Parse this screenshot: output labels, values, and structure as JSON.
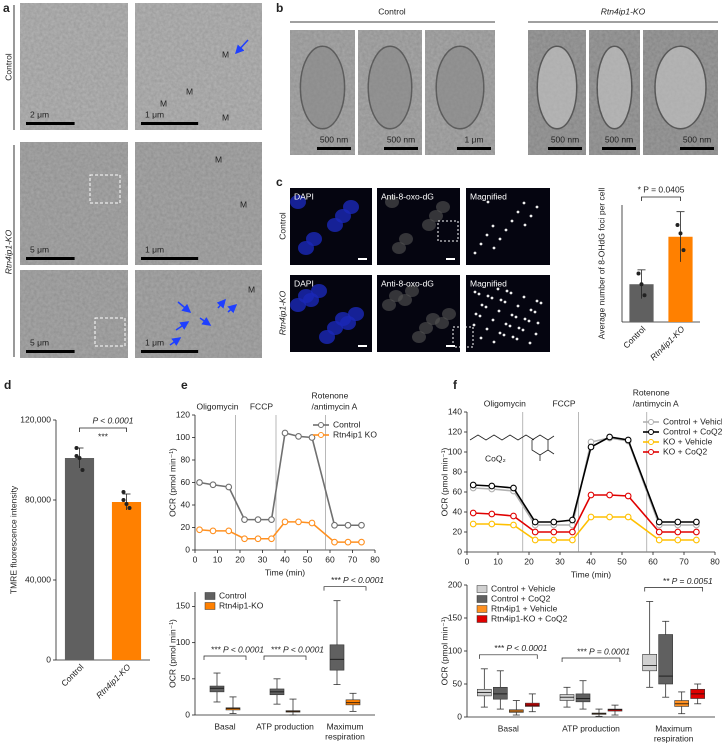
{
  "panel_a": {
    "label": "a",
    "rows": [
      "Control",
      "Rtn4ip1-KO"
    ],
    "scale_bars": [
      "2 μm",
      "1 μm",
      "5 μm",
      "1 μm",
      "5 μm",
      "1 μm"
    ],
    "markers": [
      "M",
      "M",
      "M",
      "M",
      "M",
      "M",
      "M"
    ]
  },
  "panel_b": {
    "label": "b",
    "groups": [
      "Control",
      "Rtn4ip1-KO"
    ],
    "scale_bars": [
      "500 nm",
      "500 nm",
      "1 μm",
      "500 nm",
      "500 nm",
      "500 nm"
    ]
  },
  "panel_c": {
    "label": "c",
    "rows": [
      "Control",
      "Rtn4ip1-KO"
    ],
    "channels": [
      [
        "DAPI",
        "Anti-8-oxo-dG",
        "Magnified"
      ],
      [
        "DAPI",
        "Anti-8-oxo-dG",
        "Magnified"
      ]
    ]
  },
  "chart_data": [
    {
      "type": "bar",
      "ylabel": "Average number of 8-OHdG foci per cell",
      "categories": [
        "Control",
        "Rtn4ip1-KO"
      ],
      "values": [
        113,
        255
      ],
      "errors": [
        43,
        75
      ],
      "colors": [
        "#606060",
        "#ff8000"
      ],
      "points": [
        [
          145,
          113,
          80
        ],
        [
          290,
          265,
          215
        ]
      ],
      "ylim": [
        0,
        350
      ],
      "annotation": "* P = 0.0405"
    },
    {
      "type": "bar",
      "panel": "d",
      "ylabel": "TMRE fluorescence intensity",
      "categories": [
        "Control",
        "Rtn4ip1-KO"
      ],
      "values": [
        101000,
        79000
      ],
      "errors": [
        5000,
        4000
      ],
      "colors": [
        "#606060",
        "#ff8000"
      ],
      "points": [
        [
          106000,
          101000,
          95000,
          102000
        ],
        [
          84000,
          78000,
          76000,
          80000
        ]
      ],
      "ylim": [
        0,
        120000
      ],
      "yticks": [
        0,
        {
          "value": 40000,
          "label": "40,000"
        },
        {
          "value": 80000,
          "label": "80,000"
        },
        {
          "value": 120000,
          "label": "120,000"
        }
      ],
      "annotation": "***",
      "annotation_p": "P < 0.0001"
    },
    {
      "type": "line",
      "panel": "e",
      "xlabel": "Time (min)",
      "ylabel": "OCR (pmol min⁻¹)",
      "x": [
        2,
        8,
        15,
        22,
        28,
        34,
        40,
        46,
        52,
        62,
        68,
        74
      ],
      "xlim": [
        0,
        80
      ],
      "xticks": [
        0,
        10,
        20,
        30,
        40,
        50,
        60,
        70,
        80
      ],
      "ylim": [
        0,
        120
      ],
      "yticks": [
        0,
        20,
        40,
        60,
        80,
        100,
        120
      ],
      "legend": "upper right",
      "markers": [
        {
          "x": 18,
          "label_lines": [
            "Oligomycin"
          ]
        },
        {
          "x": 36,
          "label_lines": [
            "FCCP"
          ]
        },
        {
          "x": 58,
          "label_lines": [
            "Rotenone",
            "/antimycin A"
          ]
        }
      ],
      "series": [
        {
          "name": "Control",
          "color": "#707070",
          "values": [
            60,
            58,
            56,
            27,
            27,
            27,
            104,
            101,
            100,
            22,
            22,
            22
          ]
        },
        {
          "name": "Rtn4ip1 KO",
          "color": "#ff9020",
          "values": [
            18,
            17,
            17,
            10,
            10,
            10,
            25,
            25,
            24,
            7,
            7,
            7
          ]
        }
      ]
    },
    {
      "type": "box",
      "ylabel": "OCR (pmol min⁻¹)",
      "categories": [
        [
          "Basal"
        ],
        [
          "ATP production"
        ],
        [
          "Maximum",
          "respiration"
        ]
      ],
      "ylim": [
        0,
        170
      ],
      "yticks": [
        0,
        50,
        100,
        150
      ],
      "legend": "upper left",
      "annotations": [
        {
          "stars": "***",
          "p": "P < 0.0001"
        },
        {
          "stars": "***",
          "p": "P < 0.0001"
        },
        {
          "stars": "***",
          "p": "P < 0.0001"
        }
      ],
      "series": [
        {
          "name": "Control",
          "color": "#606060",
          "min": [
            18,
            15,
            42
          ],
          "q1": [
            32,
            28,
            62
          ],
          "median": [
            37,
            32,
            77
          ],
          "q3": [
            40,
            36,
            97
          ],
          "max": [
            58,
            50,
            158
          ]
        },
        {
          "name": "Rtn4ip1-KO",
          "color": "#ff8000",
          "min": [
            2,
            0,
            5
          ],
          "q1": [
            7,
            4,
            14
          ],
          "median": [
            9,
            5,
            17
          ],
          "q3": [
            10,
            6,
            21
          ],
          "max": [
            25,
            22,
            30
          ]
        }
      ]
    },
    {
      "type": "line",
      "panel": "f",
      "inset_label": "CoQ₂",
      "xlabel": "Time (min)",
      "ylabel": "OCR (pmol min⁻¹)",
      "x": [
        2,
        8,
        15,
        22,
        28,
        34,
        40,
        46,
        52,
        62,
        68,
        74
      ],
      "xlim": [
        0,
        80
      ],
      "xticks": [
        0,
        10,
        20,
        30,
        40,
        50,
        60,
        70,
        80
      ],
      "ylim": [
        0,
        140
      ],
      "yticks": [
        0,
        20,
        40,
        60,
        80,
        100,
        120,
        140
      ],
      "legend": "upper right",
      "markers": [
        {
          "x": 18,
          "label_lines": [
            "Oligomycin"
          ]
        },
        {
          "x": 36,
          "label_lines": [
            "FCCP"
          ]
        },
        {
          "x": 58,
          "label_lines": [
            "Rotenone",
            "/antimycin A"
          ]
        }
      ],
      "series": [
        {
          "name": "Control + Vehicle",
          "color": "#b0b0b0",
          "values": [
            64,
            63,
            61,
            27,
            27,
            27,
            110,
            114,
            111,
            27,
            27,
            27
          ]
        },
        {
          "name": "Control + CoQ2",
          "color": "#000000",
          "values": [
            67,
            66,
            64,
            30,
            30,
            32,
            105,
            115,
            112,
            30,
            30,
            30
          ]
        },
        {
          "name": "KO + Vehicle",
          "color": "#ffc000",
          "values": [
            28,
            28,
            27,
            12,
            12,
            12,
            35,
            35,
            35,
            12,
            12,
            12
          ]
        },
        {
          "name": "KO + CoQ2",
          "color": "#e00000",
          "values": [
            39,
            38,
            36,
            20,
            20,
            20,
            57,
            57,
            56,
            20,
            20,
            20
          ]
        }
      ]
    },
    {
      "type": "box",
      "ylabel": "OCR (pmol min⁻¹)",
      "categories": [
        [
          "Basal"
        ],
        [
          "ATP production"
        ],
        [
          "Maximum",
          "respiration"
        ]
      ],
      "ylim": [
        0,
        200
      ],
      "yticks": [
        0,
        50,
        100,
        150,
        200
      ],
      "legend": "upper left",
      "annotations": [
        {
          "stars": "***",
          "p": "P < 0.0001"
        },
        {
          "stars": "***",
          "p": "P = 0.0001"
        },
        {
          "stars": "**",
          "p": "P = 0.0051"
        }
      ],
      "series": [
        {
          "name": "Control + Vehicle",
          "color": "#d0d0d0",
          "min": [
            15,
            15,
            45
          ],
          "q1": [
            32,
            25,
            70
          ],
          "median": [
            37,
            30,
            78
          ],
          "q3": [
            42,
            34,
            95
          ],
          "max": [
            73,
            45,
            175
          ]
        },
        {
          "name": "Control + CoQ2",
          "color": "#606060",
          "min": [
            12,
            12,
            30
          ],
          "q1": [
            27,
            23,
            50
          ],
          "median": [
            35,
            28,
            62
          ],
          "q3": [
            45,
            35,
            125
          ],
          "max": [
            70,
            55,
            145
          ]
        },
        {
          "name": "Rtn4ip1 + Vehicle",
          "color": "#ff9020",
          "min": [
            3,
            1,
            5
          ],
          "q1": [
            7,
            4,
            16
          ],
          "median": [
            9,
            5,
            20
          ],
          "q3": [
            11,
            6,
            25
          ],
          "max": [
            25,
            12,
            38
          ]
        },
        {
          "name": "Rtn4ip1-KO + CoQ2",
          "color": "#e00000",
          "min": [
            8,
            3,
            20
          ],
          "q1": [
            16,
            9,
            28
          ],
          "median": [
            18,
            11,
            35
          ],
          "q3": [
            21,
            12,
            42
          ],
          "max": [
            35,
            18,
            50
          ]
        }
      ]
    }
  ]
}
